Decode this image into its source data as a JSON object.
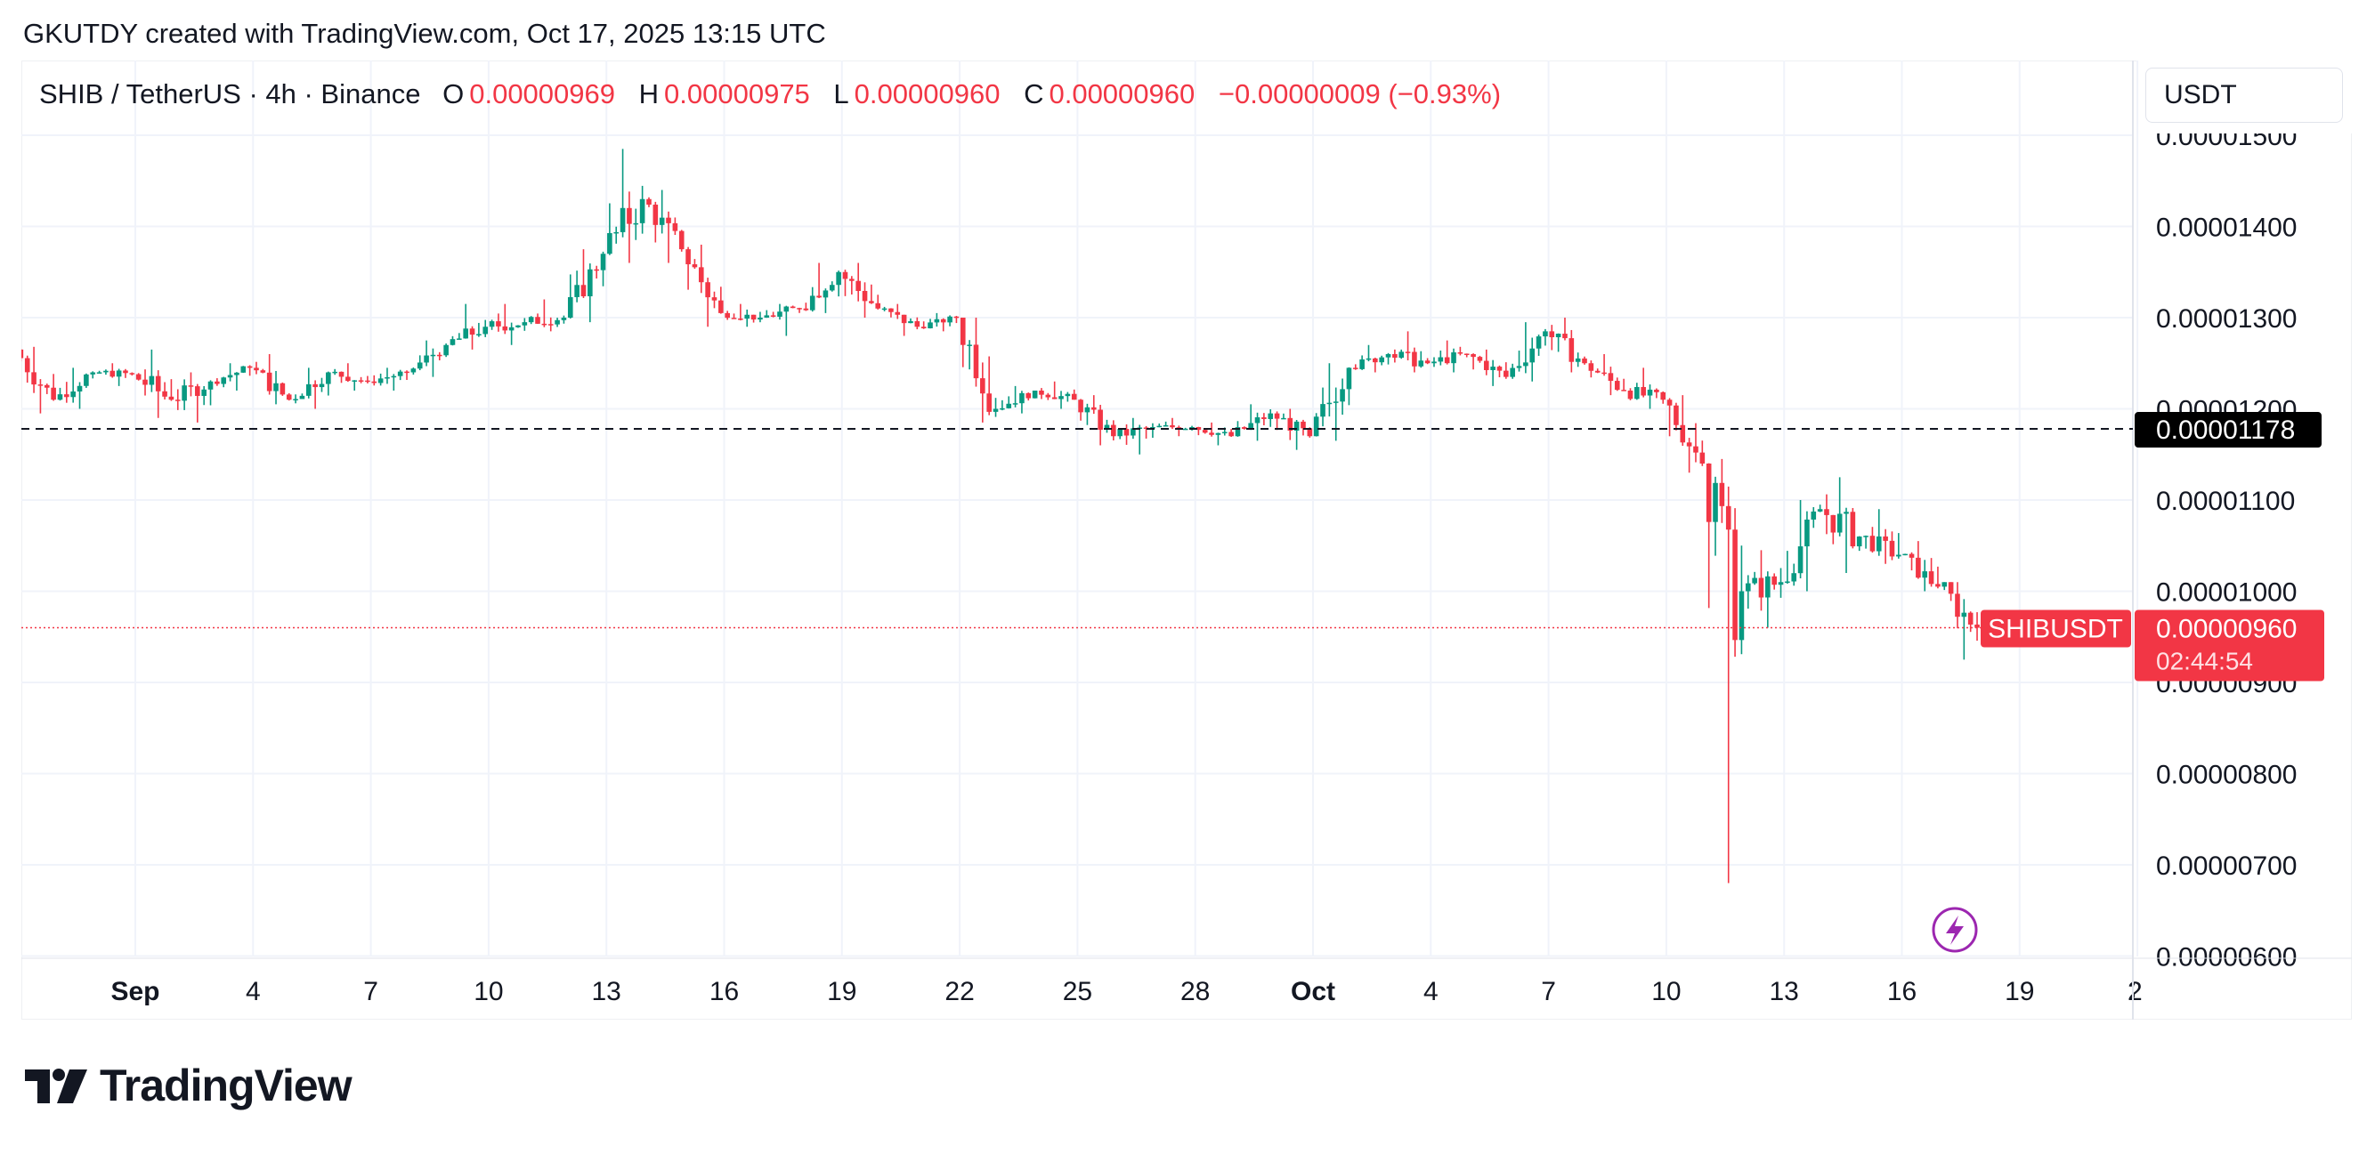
{
  "header": {
    "credit": "GKUTDY created with TradingView.com, Oct 17, 2025 13:15 UTC"
  },
  "legend": {
    "symbol": "SHIB / TetherUS · 4h · Binance",
    "open_label": "O",
    "open": "0.00000969",
    "high_label": "H",
    "high": "0.00000975",
    "low_label": "L",
    "low": "0.00000960",
    "close_label": "C",
    "close": "0.00000960",
    "change": "−0.00000009 (−0.93%)"
  },
  "currency_button": "USDT",
  "price_axis": {
    "ticks": [
      "0.00001500",
      "0.00001400",
      "0.00001300",
      "0.00001200",
      "0.00001100",
      "0.00001000",
      "0.00000900",
      "0.00000800",
      "0.00000700",
      "0.00000600"
    ]
  },
  "time_axis": {
    "ticks": [
      "Sep",
      "4",
      "7",
      "10",
      "13",
      "16",
      "19",
      "22",
      "25",
      "28",
      "Oct",
      "4",
      "7",
      "10",
      "13",
      "16",
      "19",
      "2"
    ]
  },
  "horizontal_line": {
    "value": 1.178e-05,
    "label": "0.00001178"
  },
  "current_price": {
    "symbol_tag": "SHIBUSDT",
    "price": "0.00000960",
    "countdown": "02:44:54"
  },
  "brand": {
    "name": "TradingView"
  },
  "colors": {
    "up": "#089981",
    "down": "#f23645",
    "grid": "#f0f3fa",
    "label_dark": "#000000"
  },
  "chart_data": {
    "type": "candlestick",
    "title": "SHIB / TetherUS · 4h · Binance",
    "interval": "4h",
    "y_unit": "USDT",
    "ylim": [
      6e-06,
      1.51e-05
    ],
    "x_range": [
      "2025-08-29",
      "2025-10-21"
    ],
    "grid": true,
    "ohlc_daily_approx": [
      {
        "date": "2025-08-29",
        "open": 1.265e-05,
        "high": 1.268e-05,
        "low": 1.195e-05,
        "close": 1.21e-05
      },
      {
        "date": "2025-08-30",
        "open": 1.21e-05,
        "high": 1.245e-05,
        "low": 1.2e-05,
        "close": 1.24e-05
      },
      {
        "date": "2025-08-31",
        "open": 1.24e-05,
        "high": 1.25e-05,
        "low": 1.225e-05,
        "close": 1.238e-05
      },
      {
        "date": "2025-09-01",
        "open": 1.238e-05,
        "high": 1.265e-05,
        "low": 1.19e-05,
        "close": 1.21e-05
      },
      {
        "date": "2025-09-02",
        "open": 1.21e-05,
        "high": 1.24e-05,
        "low": 1.185e-05,
        "close": 1.23e-05
      },
      {
        "date": "2025-09-03",
        "open": 1.23e-05,
        "high": 1.25e-05,
        "low": 1.22e-05,
        "close": 1.245e-05
      },
      {
        "date": "2025-09-04",
        "open": 1.245e-05,
        "high": 1.26e-05,
        "low": 1.205e-05,
        "close": 1.21e-05
      },
      {
        "date": "2025-09-05",
        "open": 1.21e-05,
        "high": 1.245e-05,
        "low": 1.2e-05,
        "close": 1.24e-05
      },
      {
        "date": "2025-09-06",
        "open": 1.24e-05,
        "high": 1.25e-05,
        "low": 1.22e-05,
        "close": 1.23e-05
      },
      {
        "date": "2025-09-07",
        "open": 1.23e-05,
        "high": 1.245e-05,
        "low": 1.22e-05,
        "close": 1.24e-05
      },
      {
        "date": "2025-09-08",
        "open": 1.24e-05,
        "high": 1.275e-05,
        "low": 1.235e-05,
        "close": 1.27e-05
      },
      {
        "date": "2025-09-09",
        "open": 1.27e-05,
        "high": 1.315e-05,
        "low": 1.265e-05,
        "close": 1.29e-05
      },
      {
        "date": "2025-09-10",
        "open": 1.29e-05,
        "high": 1.315e-05,
        "low": 1.27e-05,
        "close": 1.295e-05
      },
      {
        "date": "2025-09-11",
        "open": 1.295e-05,
        "high": 1.32e-05,
        "low": 1.285e-05,
        "close": 1.3e-05
      },
      {
        "date": "2025-09-12",
        "open": 1.3e-05,
        "high": 1.375e-05,
        "low": 1.295e-05,
        "close": 1.37e-05
      },
      {
        "date": "2025-09-13",
        "open": 1.37e-05,
        "high": 1.485e-05,
        "low": 1.36e-05,
        "close": 1.43e-05
      },
      {
        "date": "2025-09-14",
        "open": 1.43e-05,
        "high": 1.44e-05,
        "low": 1.36e-05,
        "close": 1.375e-05
      },
      {
        "date": "2025-09-15",
        "open": 1.375e-05,
        "high": 1.38e-05,
        "low": 1.29e-05,
        "close": 1.305e-05
      },
      {
        "date": "2025-09-16",
        "open": 1.305e-05,
        "high": 1.315e-05,
        "low": 1.29e-05,
        "close": 1.3e-05
      },
      {
        "date": "2025-09-17",
        "open": 1.3e-05,
        "high": 1.315e-05,
        "low": 1.28e-05,
        "close": 1.31e-05
      },
      {
        "date": "2025-09-18",
        "open": 1.31e-05,
        "high": 1.36e-05,
        "low": 1.305e-05,
        "close": 1.35e-05
      },
      {
        "date": "2025-09-19",
        "open": 1.35e-05,
        "high": 1.36e-05,
        "low": 1.3e-05,
        "close": 1.31e-05
      },
      {
        "date": "2025-09-20",
        "open": 1.31e-05,
        "high": 1.315e-05,
        "low": 1.28e-05,
        "close": 1.29e-05
      },
      {
        "date": "2025-09-21",
        "open": 1.29e-05,
        "high": 1.305e-05,
        "low": 1.285e-05,
        "close": 1.3e-05
      },
      {
        "date": "2025-09-22",
        "open": 1.3e-05,
        "high": 1.3e-05,
        "low": 1.185e-05,
        "close": 1.2e-05
      },
      {
        "date": "2025-09-23",
        "open": 1.2e-05,
        "high": 1.225e-05,
        "low": 1.195e-05,
        "close": 1.22e-05
      },
      {
        "date": "2025-09-24",
        "open": 1.22e-05,
        "high": 1.23e-05,
        "low": 1.2e-05,
        "close": 1.21e-05
      },
      {
        "date": "2025-09-25",
        "open": 1.21e-05,
        "high": 1.215e-05,
        "low": 1.16e-05,
        "close": 1.17e-05
      },
      {
        "date": "2025-09-26",
        "open": 1.17e-05,
        "high": 1.19e-05,
        "low": 1.15e-05,
        "close": 1.18e-05
      },
      {
        "date": "2025-09-27",
        "open": 1.18e-05,
        "high": 1.19e-05,
        "low": 1.17e-05,
        "close": 1.18e-05
      },
      {
        "date": "2025-09-28",
        "open": 1.18e-05,
        "high": 1.185e-05,
        "low": 1.16e-05,
        "close": 1.17e-05
      },
      {
        "date": "2025-09-29",
        "open": 1.17e-05,
        "high": 1.205e-05,
        "low": 1.165e-05,
        "close": 1.195e-05
      },
      {
        "date": "2025-09-30",
        "open": 1.195e-05,
        "high": 1.2e-05,
        "low": 1.155e-05,
        "close": 1.17e-05
      },
      {
        "date": "2025-10-01",
        "open": 1.17e-05,
        "high": 1.25e-05,
        "low": 1.165e-05,
        "close": 1.245e-05
      },
      {
        "date": "2025-10-02",
        "open": 1.245e-05,
        "high": 1.27e-05,
        "low": 1.24e-05,
        "close": 1.26e-05
      },
      {
        "date": "2025-10-03",
        "open": 1.26e-05,
        "high": 1.285e-05,
        "low": 1.24e-05,
        "close": 1.25e-05
      },
      {
        "date": "2025-10-04",
        "open": 1.25e-05,
        "high": 1.275e-05,
        "low": 1.24e-05,
        "close": 1.26e-05
      },
      {
        "date": "2025-10-05",
        "open": 1.26e-05,
        "high": 1.265e-05,
        "low": 1.225e-05,
        "close": 1.235e-05
      },
      {
        "date": "2025-10-06",
        "open": 1.235e-05,
        "high": 1.295e-05,
        "low": 1.23e-05,
        "close": 1.285e-05
      },
      {
        "date": "2025-10-07",
        "open": 1.285e-05,
        "high": 1.3e-05,
        "low": 1.24e-05,
        "close": 1.25e-05
      },
      {
        "date": "2025-10-08",
        "open": 1.25e-05,
        "high": 1.26e-05,
        "low": 1.215e-05,
        "close": 1.22e-05
      },
      {
        "date": "2025-10-09",
        "open": 1.22e-05,
        "high": 1.245e-05,
        "low": 1.2e-05,
        "close": 1.21e-05
      },
      {
        "date": "2025-10-10",
        "open": 1.21e-05,
        "high": 1.215e-05,
        "low": 1.13e-05,
        "close": 1.14e-05
      },
      {
        "date": "2025-10-11",
        "open": 1.14e-05,
        "high": 1.145e-05,
        "low": 6.8e-06,
        "close": 1e-05
      },
      {
        "date": "2025-10-12",
        "open": 1e-05,
        "high": 1.045e-05,
        "low": 9.6e-06,
        "close": 1.01e-05
      },
      {
        "date": "2025-10-13",
        "open": 1.01e-05,
        "high": 1.1e-05,
        "low": 1e-05,
        "close": 1.09e-05
      },
      {
        "date": "2025-10-14",
        "open": 1.09e-05,
        "high": 1.125e-05,
        "low": 1.02e-05,
        "close": 1.06e-05
      },
      {
        "date": "2025-10-15",
        "open": 1.06e-05,
        "high": 1.09e-05,
        "low": 1.03e-05,
        "close": 1.04e-05
      },
      {
        "date": "2025-10-16",
        "open": 1.04e-05,
        "high": 1.055e-05,
        "low": 1e-05,
        "close": 1.005e-05
      },
      {
        "date": "2025-10-17",
        "open": 1.005e-05,
        "high": 1.01e-05,
        "low": 9.25e-06,
        "close": 9.6e-06
      }
    ]
  }
}
